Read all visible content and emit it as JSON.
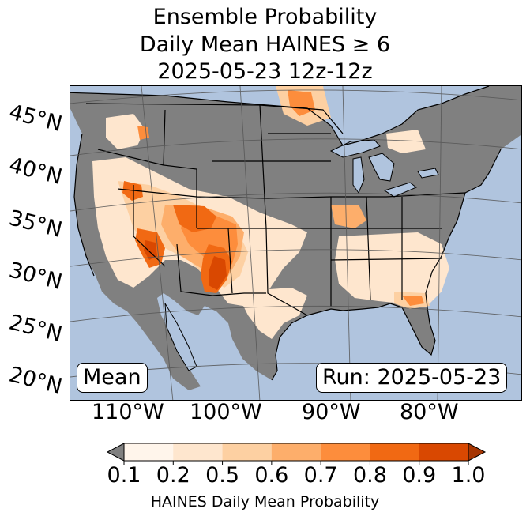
{
  "title": {
    "line1": "Ensemble Probability",
    "line2": "Daily Mean HAINES ≥ 6",
    "line3": "2025-05-23 12z-12z"
  },
  "map": {
    "lat_labels": [
      "45°N",
      "40°N",
      "35°N",
      "30°N",
      "25°N",
      "20°N"
    ],
    "lon_labels": [
      "110°W",
      "100°W",
      "90°W",
      "80°W"
    ],
    "mean_label": "Mean",
    "run_label": "Run: 2025-05-23",
    "colors": {
      "ocean": "#b0c4de",
      "below_threshold": "#808080",
      "land_outline": "#000000",
      "graticule": "#555555"
    }
  },
  "colorbar": {
    "ticks": [
      "0.1",
      "0.2",
      "0.5",
      "0.6",
      "0.7",
      "0.8",
      "0.9",
      "1.0"
    ],
    "label": "HAINES Daily Mean Probability",
    "colors": [
      "#fff5eb",
      "#fee6ce",
      "#fdd0a2",
      "#fdae6b",
      "#fd8d3c",
      "#f16913",
      "#d94801",
      "#a63603"
    ],
    "under_color": "#808080"
  }
}
